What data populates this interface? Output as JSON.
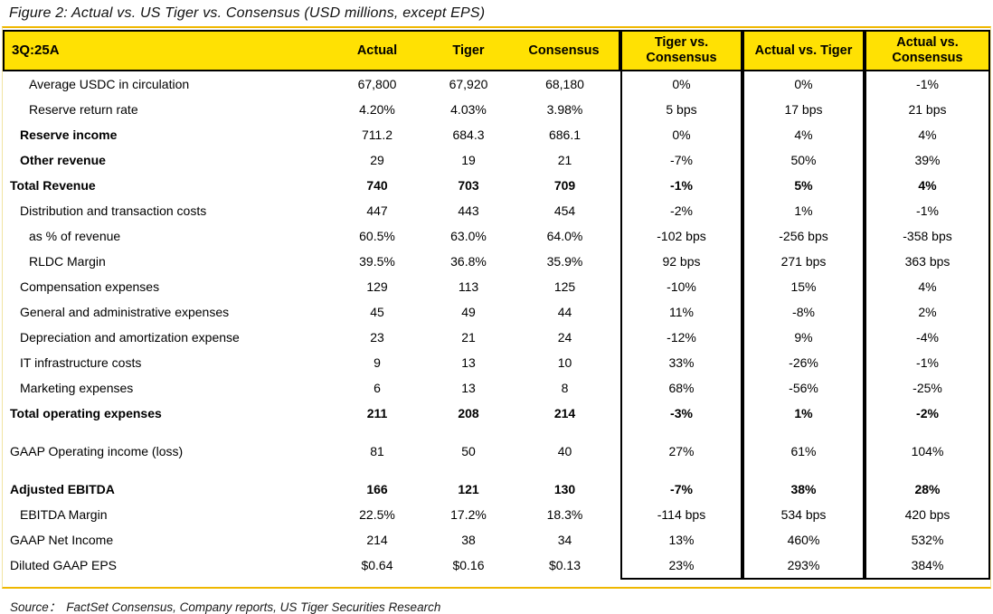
{
  "chart_data": {
    "type": "table",
    "title": "Figure 2: Actual vs. US Tiger vs. Consensus (USD millions, except EPS)",
    "header": {
      "period": "3Q:25A",
      "columns": [
        "Actual",
        "Tiger",
        "Consensus",
        "Tiger vs. Consensus",
        "Actual vs. Tiger",
        "Actual vs. Consensus"
      ]
    },
    "rows": [
      {
        "label": "Average USDC in circulation",
        "indent": 2,
        "bold_label": false,
        "bold_values": false,
        "values": [
          "67,800",
          "67,920",
          "68,180",
          "0%",
          "0%",
          "-1%"
        ]
      },
      {
        "label": "Reserve return rate",
        "indent": 2,
        "bold_label": false,
        "bold_values": false,
        "values": [
          "4.20%",
          "4.03%",
          "3.98%",
          "5 bps",
          "17 bps",
          "21 bps"
        ]
      },
      {
        "label": "Reserve income",
        "indent": 1,
        "bold_label": true,
        "bold_values": false,
        "values": [
          "711.2",
          "684.3",
          "686.1",
          "0%",
          "4%",
          "4%"
        ]
      },
      {
        "label": "Other revenue",
        "indent": 1,
        "bold_label": true,
        "bold_values": false,
        "values": [
          "29",
          "19",
          "21",
          "-7%",
          "50%",
          "39%"
        ]
      },
      {
        "label": "Total Revenue",
        "indent": 0,
        "bold_label": true,
        "bold_values": true,
        "values": [
          "740",
          "703",
          "709",
          "-1%",
          "5%",
          "4%"
        ]
      },
      {
        "label": "Distribution and transaction costs",
        "indent": 1,
        "bold_label": false,
        "bold_values": false,
        "values": [
          "447",
          "443",
          "454",
          "-2%",
          "1%",
          "-1%"
        ]
      },
      {
        "label": "as % of revenue",
        "indent": 2,
        "bold_label": false,
        "bold_values": false,
        "values": [
          "60.5%",
          "63.0%",
          "64.0%",
          "-102 bps",
          "-256 bps",
          "-358 bps"
        ]
      },
      {
        "label": "RLDC Margin",
        "indent": 2,
        "bold_label": false,
        "bold_values": false,
        "values": [
          "39.5%",
          "36.8%",
          "35.9%",
          "92 bps",
          "271 bps",
          "363 bps"
        ]
      },
      {
        "label": "Compensation expenses",
        "indent": 1,
        "bold_label": false,
        "bold_values": false,
        "values": [
          "129",
          "113",
          "125",
          "-10%",
          "15%",
          "4%"
        ]
      },
      {
        "label": "General and administrative expenses",
        "indent": 1,
        "bold_label": false,
        "bold_values": false,
        "values": [
          "45",
          "49",
          "44",
          "11%",
          "-8%",
          "2%"
        ]
      },
      {
        "label": "Depreciation and amortization expense",
        "indent": 1,
        "bold_label": false,
        "bold_values": false,
        "values": [
          "23",
          "21",
          "24",
          "-12%",
          "9%",
          "-4%"
        ]
      },
      {
        "label": "IT infrastructure costs",
        "indent": 1,
        "bold_label": false,
        "bold_values": false,
        "values": [
          "9",
          "13",
          "10",
          "33%",
          "-26%",
          "-1%"
        ]
      },
      {
        "label": "Marketing expenses",
        "indent": 1,
        "bold_label": false,
        "bold_values": false,
        "values": [
          "6",
          "13",
          "8",
          "68%",
          "-56%",
          "-25%"
        ]
      },
      {
        "label": "Total operating expenses",
        "indent": 0,
        "bold_label": true,
        "bold_values": true,
        "values": [
          "211",
          "208",
          "214",
          "-3%",
          "1%",
          "-2%"
        ]
      },
      {
        "label": "GAAP Operating income (loss)",
        "indent": 0,
        "bold_label": false,
        "bold_values": false,
        "spacer_above": true,
        "tall": true,
        "values": [
          "81",
          "50",
          "40",
          "27%",
          "61%",
          "104%"
        ]
      },
      {
        "label": "Adjusted EBITDA",
        "indent": 0,
        "bold_label": true,
        "bold_values": true,
        "spacer_above": true,
        "values": [
          "166",
          "121",
          "130",
          "-7%",
          "38%",
          "28%"
        ]
      },
      {
        "label": "EBITDA Margin",
        "indent": 1,
        "bold_label": false,
        "bold_values": false,
        "values": [
          "22.5%",
          "17.2%",
          "18.3%",
          "-114 bps",
          "534 bps",
          "420 bps"
        ]
      },
      {
        "label": "GAAP Net Income",
        "indent": 0,
        "bold_label": false,
        "bold_values": false,
        "values": [
          "214",
          "38",
          "34",
          "13%",
          "460%",
          "532%"
        ]
      },
      {
        "label": "Diluted GAAP EPS",
        "indent": 0,
        "bold_label": false,
        "bold_values": false,
        "values": [
          "$0.64",
          "$0.16",
          "$0.13",
          "23%",
          "293%",
          "384%"
        ]
      }
    ],
    "source_label": "Source：",
    "source_text": "FactSet Consensus, Company reports, US Tiger Securities Research",
    "colors": {
      "header_fill": "#FFE103",
      "rule_gold": "#EFB700",
      "border_black": "#000000"
    }
  }
}
